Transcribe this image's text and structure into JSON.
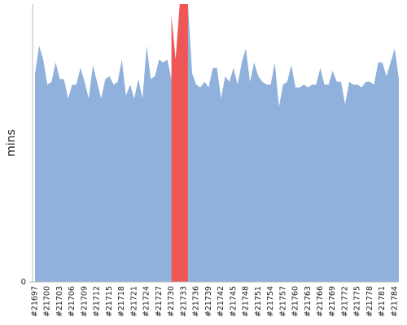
{
  "chart_data": {
    "type": "area",
    "y_label": "mins",
    "categories": [
      "#21697",
      null,
      null,
      "#21700",
      null,
      null,
      "#21703",
      null,
      null,
      "#21706",
      null,
      null,
      "#21709",
      null,
      null,
      "#21712",
      null,
      null,
      "#21715",
      null,
      null,
      "#21718",
      null,
      null,
      "#21721",
      null,
      null,
      "#21724",
      null,
      null,
      "#21727",
      null,
      null,
      "#21730",
      null,
      null,
      "#21733",
      null,
      null,
      "#21736",
      null,
      null,
      "#21739",
      null,
      null,
      "#21742",
      null,
      null,
      "#21745",
      null,
      null,
      "#21748",
      null,
      null,
      "#21751",
      null,
      null,
      "#21754",
      null,
      null,
      "#21757",
      null,
      null,
      "#21760",
      null,
      null,
      "#21763",
      null,
      null,
      "#21766",
      null,
      null,
      "#21769",
      null,
      null,
      "#21772",
      null,
      null,
      "#21775",
      null,
      null,
      "#21778",
      null,
      null,
      "#21781",
      null,
      null,
      "#21784",
      null
    ],
    "series": [
      {
        "color": "#8fb1db",
        "values": [
          75,
          85,
          80,
          71,
          72,
          79,
          73,
          73,
          66,
          71,
          71,
          77,
          72,
          66,
          78,
          72,
          66,
          73,
          74,
          71,
          72,
          80,
          67,
          71,
          66,
          73,
          66,
          85,
          73,
          74,
          80,
          79,
          80,
          73,
          null,
          null,
          null,
          100,
          75,
          71,
          70,
          72,
          70,
          77,
          77,
          66,
          74,
          72,
          77,
          71,
          79,
          84,
          72,
          79,
          74,
          72,
          71,
          71,
          79,
          63,
          71,
          72,
          78,
          70,
          70,
          71,
          70,
          71,
          71,
          77,
          71,
          71,
          76,
          72,
          72,
          64,
          72,
          71,
          71,
          70,
          72,
          72,
          71,
          79,
          79,
          74,
          79,
          84,
          73
        ]
      },
      {
        "color": "#ef5656",
        "values": [
          null,
          null,
          null,
          null,
          null,
          null,
          null,
          null,
          null,
          null,
          null,
          null,
          null,
          null,
          null,
          null,
          null,
          null,
          null,
          null,
          null,
          null,
          null,
          null,
          null,
          null,
          null,
          null,
          null,
          null,
          null,
          null,
          null,
          96,
          80,
          100,
          100,
          100,
          null,
          null,
          null,
          null,
          null,
          null,
          null,
          null,
          null,
          null,
          null,
          null,
          null,
          null,
          null,
          null,
          null,
          null,
          null,
          null,
          null,
          null,
          null,
          null,
          null,
          null,
          null,
          null,
          null,
          null,
          null,
          null,
          null,
          null,
          null,
          null,
          null,
          null,
          null,
          null,
          null,
          null,
          null,
          null,
          null,
          null,
          null,
          null,
          null,
          null,
          null
        ]
      }
    ],
    "ylim": [
      0,
      100
    ],
    "yticks": [
      0
    ]
  }
}
